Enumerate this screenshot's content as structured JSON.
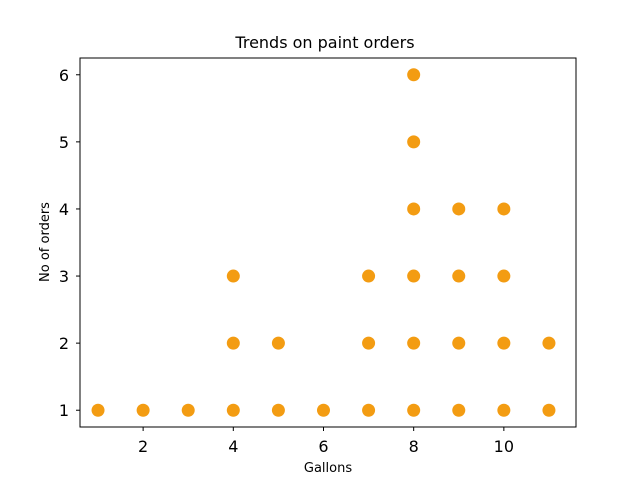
{
  "chart_data": {
    "type": "scatter",
    "title": "Trends on paint orders",
    "xlabel": "Gallons",
    "ylabel": "No of orders",
    "xlim": [
      0.6,
      11.6
    ],
    "ylim": [
      0.75,
      6.25
    ],
    "xticks": [
      2,
      4,
      6,
      8,
      10
    ],
    "yticks": [
      1,
      2,
      3,
      4,
      5,
      6
    ],
    "grid": false,
    "legend": "none",
    "marker_color": "#f39c12",
    "series": [
      {
        "points": [
          {
            "x": 1,
            "y": 1
          },
          {
            "x": 2,
            "y": 1
          },
          {
            "x": 3,
            "y": 1
          },
          {
            "x": 4,
            "y": 1
          },
          {
            "x": 4,
            "y": 2
          },
          {
            "x": 4,
            "y": 3
          },
          {
            "x": 5,
            "y": 1
          },
          {
            "x": 5,
            "y": 2
          },
          {
            "x": 6,
            "y": 1
          },
          {
            "x": 7,
            "y": 1
          },
          {
            "x": 7,
            "y": 2
          },
          {
            "x": 7,
            "y": 3
          },
          {
            "x": 8,
            "y": 1
          },
          {
            "x": 8,
            "y": 2
          },
          {
            "x": 8,
            "y": 3
          },
          {
            "x": 8,
            "y": 4
          },
          {
            "x": 8,
            "y": 5
          },
          {
            "x": 8,
            "y": 6
          },
          {
            "x": 9,
            "y": 1
          },
          {
            "x": 9,
            "y": 2
          },
          {
            "x": 9,
            "y": 3
          },
          {
            "x": 9,
            "y": 4
          },
          {
            "x": 10,
            "y": 1
          },
          {
            "x": 10,
            "y": 2
          },
          {
            "x": 10,
            "y": 3
          },
          {
            "x": 10,
            "y": 4
          },
          {
            "x": 11,
            "y": 1
          },
          {
            "x": 11,
            "y": 2
          }
        ]
      }
    ]
  }
}
